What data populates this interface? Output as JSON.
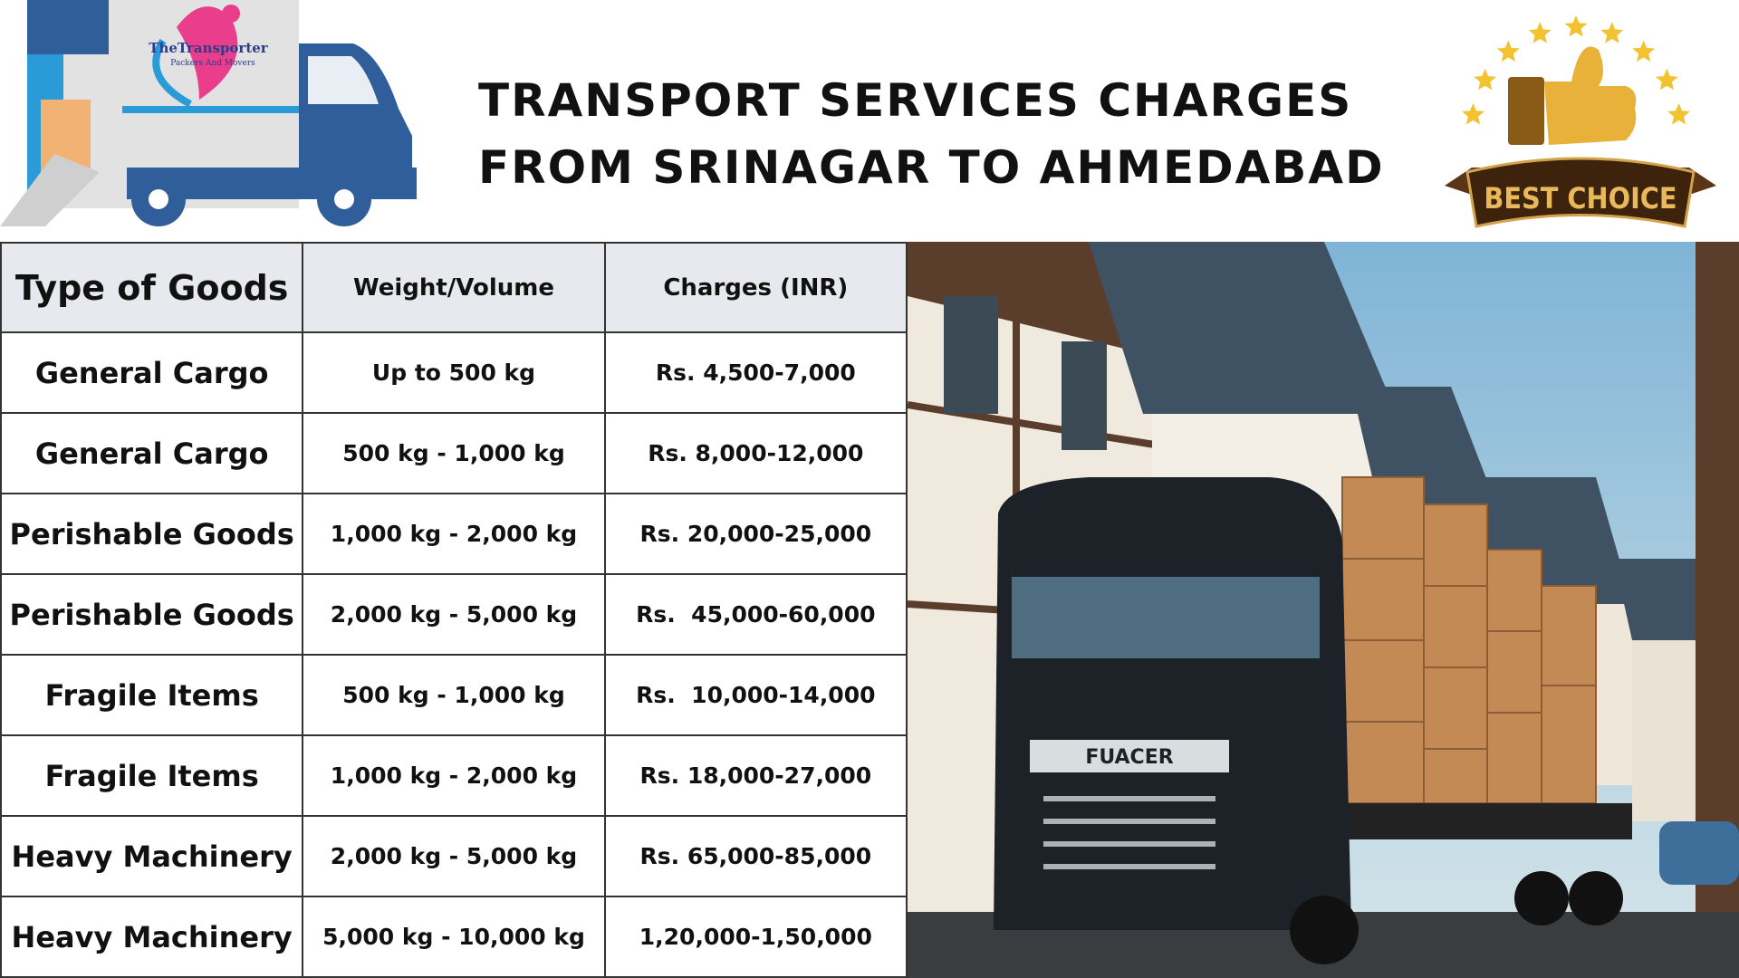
{
  "header": {
    "title_lines": [
      "TRANSPORT SERVICES CHARGES",
      "FROM SRINAGAR TO AHMEDABAD"
    ],
    "logo": {
      "name": "TheTransporter",
      "sub": "Packers And Movers"
    },
    "badge": "BEST CHOICE"
  },
  "table": {
    "columns": [
      "Type of Goods",
      "Weight/Volume",
      "Charges (INR)"
    ],
    "rows": [
      [
        "General Cargo",
        "Up to 500 kg",
        "Rs. 4,500-7,000"
      ],
      [
        "General Cargo",
        "500 kg - 1,000 kg",
        "Rs. 8,000-12,000"
      ],
      [
        "Perishable Goods",
        "1,000 kg - 2,000 kg",
        "Rs. 20,000-25,000"
      ],
      [
        "Perishable Goods",
        "2,000 kg - 5,000 kg",
        "Rs.  45,000-60,000"
      ],
      [
        "Fragile Items",
        "500 kg - 1,000 kg",
        "Rs.  10,000-14,000"
      ],
      [
        "Fragile Items",
        "1,000 kg - 2,000 kg",
        "Rs. 18,000-27,000"
      ],
      [
        "Heavy Machinery",
        "2,000 kg - 5,000 kg",
        "Rs. 65,000-85,000"
      ],
      [
        "Heavy Machinery",
        "5,000 kg - 10,000 kg",
        "1,20,000-1,50,000"
      ]
    ]
  },
  "photo": {
    "truck_badge": "FUACER"
  }
}
